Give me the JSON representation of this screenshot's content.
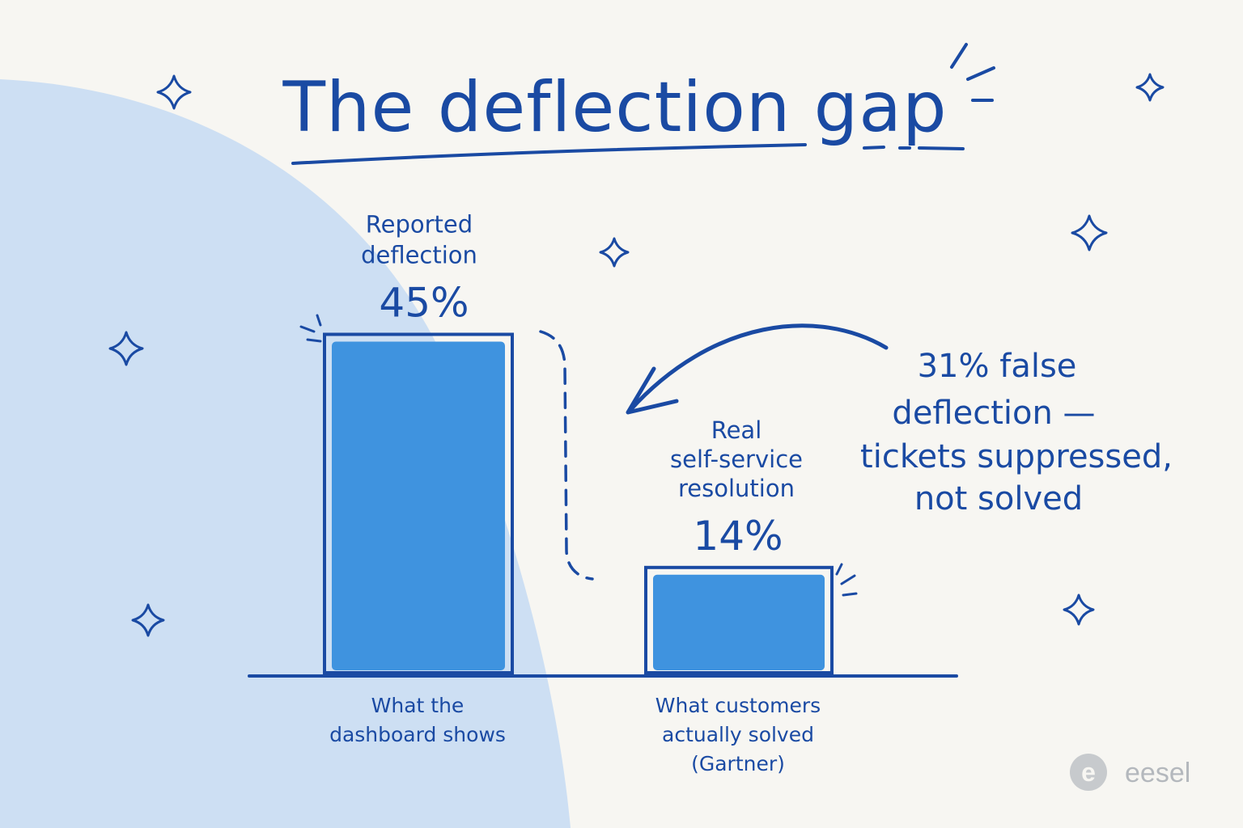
{
  "colors": {
    "background": "#f7f6f2",
    "blob": "#cddff3",
    "ink": "#1a4aa3",
    "bar_fill": "#3f93df",
    "brand_gray": "#b4b8bd"
  },
  "chart_data": {
    "type": "bar",
    "title": "The deflection gap",
    "categories": [
      "What the dashboard shows",
      "What customers actually solved (Gartner)"
    ],
    "values": [
      45,
      14
    ],
    "unit": "%",
    "ylim": [
      0,
      50
    ],
    "grid": false,
    "bars": [
      {
        "header_lines": [
          "Reported",
          "deflection"
        ],
        "value_label": "45%",
        "category_lines": [
          "What the",
          "dashboard shows"
        ]
      },
      {
        "header_lines": [
          "Real",
          "self-service",
          "resolution"
        ],
        "value_label": "14%",
        "category_lines": [
          "What customers",
          "actually solved",
          "(Gartner)"
        ]
      }
    ],
    "annotation": {
      "lines": [
        "31% false",
        "deflection —",
        "tickets suppressed,",
        "not solved"
      ],
      "gap_value": 31
    }
  },
  "brand": {
    "logo_letter": "e",
    "name": "eesel"
  },
  "icons": [
    "sparkle-icon",
    "arrow-icon",
    "eesel-logo-icon"
  ]
}
